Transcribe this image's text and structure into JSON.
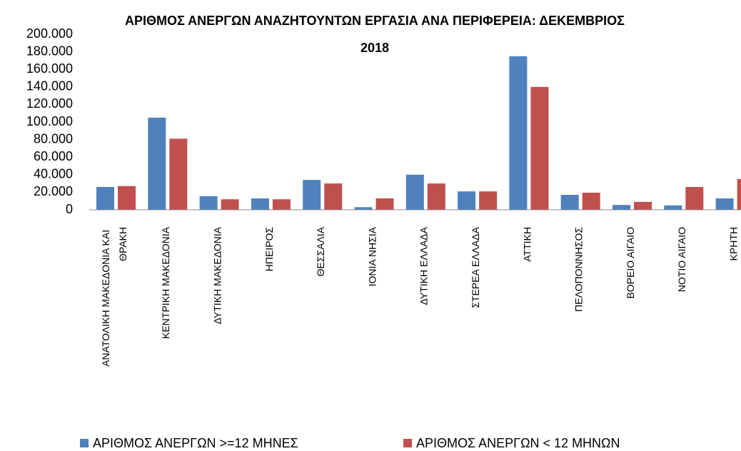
{
  "chart_data": {
    "type": "bar",
    "title": "ΑΡΙΘΜΟΣ ΑΝΕΡΓΩΝ ΑΝΑΖΗΤΟΥΝΤΩΝ ΕΡΓΑΣΙΑ ΑΝΑ ΠΕΡΙΦΕΡΕΙΑ: ΔΕΚΕΜΒΡΙΟΣ\n2018",
    "categories": [
      "ΑΝΑΤΟΛΙΚΗ ΜΑΚΕΔΟΝΙΑ ΚΑΙ ΘΡΑΚΗ",
      "ΚΕΝΤΡΙΚΗ ΜΑΚΕΔΟΝΙΑ",
      "ΔΥΤΙΚΗ ΜΑΚΕΔΟΝΙΑ",
      "ΗΠΕΙΡΟΣ",
      "ΘΕΣΣΑΛΙΑ",
      "ΙΟΝΙΑ ΝΗΣΙΑ",
      "ΔΥΤΙΚΗ ΕΛΛΑΔΑ",
      "ΣΤΕΡΕΑ ΕΛΛΑΔΑ",
      "ΑΤΤΙΚΗ",
      "ΠΕΛΟΠΟΝΝΗΣΟΣ",
      "ΒΟΡΕΙΟ ΑΙΓΑΙΟ",
      "ΝΟΤΙΟ ΑΙΓΑΙΟ",
      "ΚΡΗΤΗ"
    ],
    "series": [
      {
        "name": "ΑΡΙΘΜΟΣ ΑΝΕΡΓΩΝ >=12 ΜΗΝΕΣ",
        "color": "#4f81bd",
        "values": [
          26000,
          105000,
          15500,
          13000,
          34000,
          3000,
          40000,
          21000,
          175000,
          17000,
          5500,
          5000,
          13000
        ]
      },
      {
        "name": "ΑΡΙΘΜΟΣ ΑΝΕΡΓΩΝ < 12 ΜΗΝΩΝ",
        "color": "#c0504d",
        "values": [
          27000,
          81000,
          12000,
          12000,
          30000,
          13000,
          30000,
          21000,
          140000,
          19500,
          9000,
          26000,
          35000
        ]
      }
    ],
    "ylim": [
      0,
      200000
    ],
    "yticks": [
      0,
      {
        "value": 20000,
        "label": "20.000"
      },
      {
        "value": 40000,
        "label": "40.000"
      },
      {
        "value": 60000,
        "label": "60.000"
      },
      {
        "value": 80000,
        "label": "80.000"
      },
      {
        "value": 100000,
        "label": "100.000"
      },
      {
        "value": 120000,
        "label": "120.000"
      },
      {
        "value": 140000,
        "label": "140.000"
      },
      {
        "value": 160000,
        "label": "160.000"
      },
      {
        "value": 180000,
        "label": "180.000"
      },
      {
        "value": 200000,
        "label": "200.000"
      }
    ],
    "grid": false,
    "legend": "bottom"
  }
}
